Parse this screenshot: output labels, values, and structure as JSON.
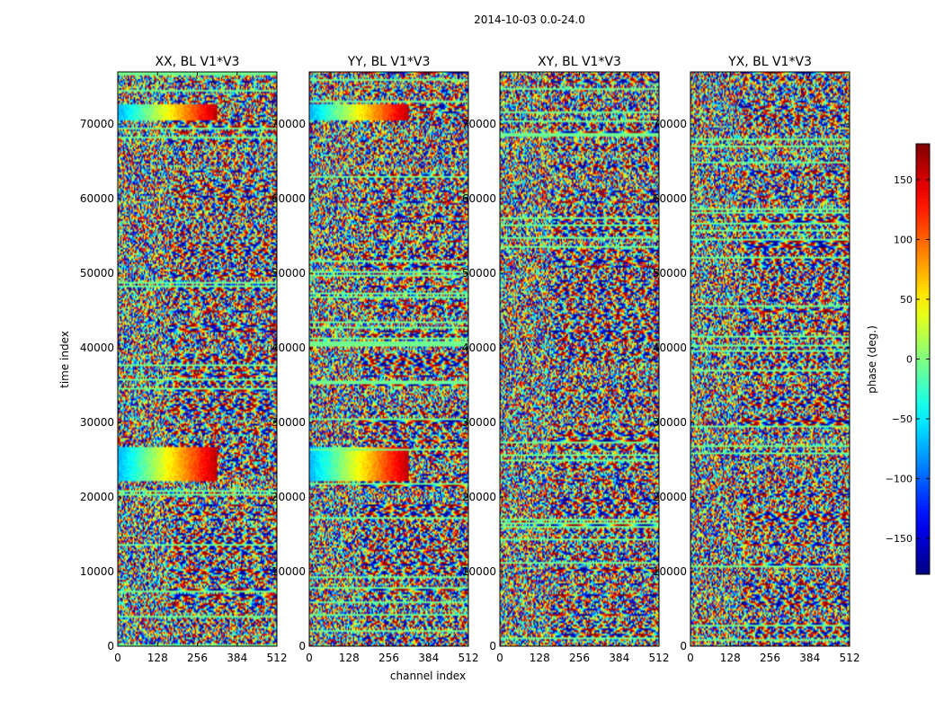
{
  "figure": {
    "suptitle": "2014-10-03 0.0-24.0"
  },
  "chart_data": {
    "type": "heatmap",
    "colormap": "jet",
    "xlabel": "channel index",
    "ylabel": "time index",
    "xticks": [
      0,
      128,
      256,
      384,
      512
    ],
    "yticks": [
      0,
      10000,
      20000,
      30000,
      40000,
      50000,
      60000,
      70000
    ],
    "xlim": [
      0,
      512
    ],
    "ylim": [
      0,
      77000
    ],
    "panels": [
      {
        "title": "XX, BL V1*V3"
      },
      {
        "title": "YY, BL V1*V3"
      },
      {
        "title": "XY, BL V1*V3"
      },
      {
        "title": "YX, BL V1*V3"
      }
    ],
    "colorbar": {
      "label": "phase (deg.)",
      "range": [
        -180,
        180
      ],
      "ticks": [
        150,
        100,
        50,
        0,
        -50,
        -100,
        -150
      ],
      "tick_labels": [
        "150",
        "100",
        "50",
        "0",
        "−50",
        "−100",
        "−150"
      ]
    }
  }
}
